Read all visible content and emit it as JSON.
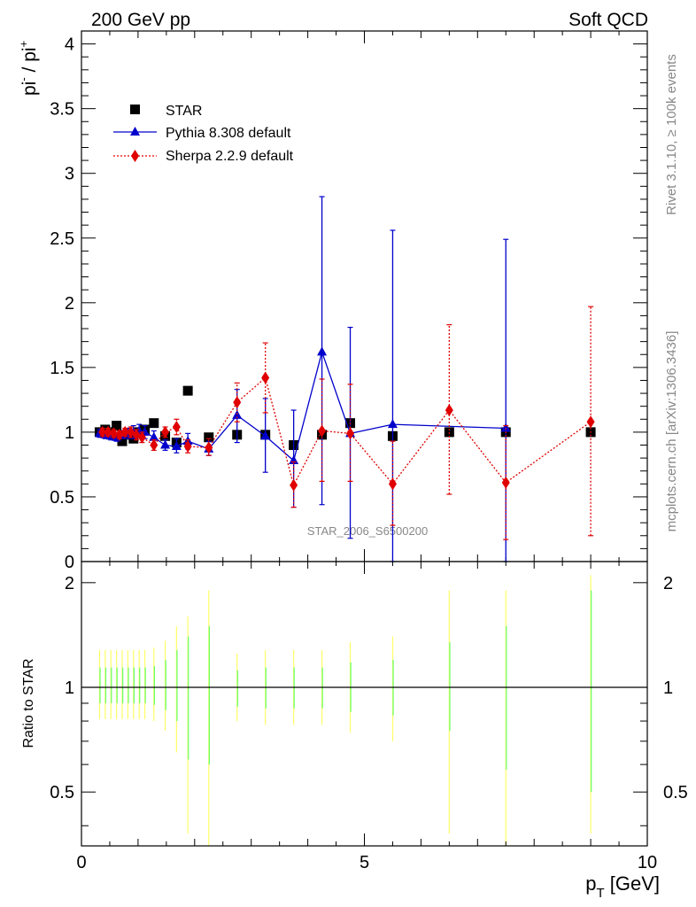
{
  "header": {
    "left": "200 GeV pp",
    "right": "Soft QCD"
  },
  "side_labels": {
    "rivet": "Rivet 3.1.10, ≥ 100k events",
    "mcplots": "mcplots.cern.ch [arXiv:1306.3436]"
  },
  "watermark": "STAR_2006_S6500200",
  "legend": {
    "star": "STAR",
    "pythia": "Pythia 8.308 default",
    "sherpa": "Sherpa 2.2.9 default"
  },
  "colors": {
    "star": "#000000",
    "pythia": "#0000cc",
    "sherpa": "#e00000",
    "band_outer": "#ffff66",
    "band_inner": "#66ff66"
  },
  "chart_data": [
    {
      "type": "scatter",
      "panel": "main",
      "ylabel_parts": {
        "base": "pi",
        "sup_minus": "-",
        "sep": " / pi",
        "sup_plus": "+"
      },
      "xlim": [
        0,
        10
      ],
      "ylim": [
        0,
        4.1
      ],
      "yticks": [
        {
          "v": 0,
          "label": "0"
        },
        {
          "v": 0.5,
          "label": "0.5"
        },
        {
          "v": 1,
          "label": "1"
        },
        {
          "v": 1.5,
          "label": "1.5"
        },
        {
          "v": 2,
          "label": "2"
        },
        {
          "v": 2.5,
          "label": "2.5"
        },
        {
          "v": 3,
          "label": "3"
        },
        {
          "v": 3.5,
          "label": "3.5"
        },
        {
          "v": 4,
          "label": "4"
        }
      ],
      "series": [
        {
          "name": "STAR",
          "marker": "square",
          "points": [
            {
              "x": 0.32,
              "y": 1.0
            },
            {
              "x": 0.42,
              "y": 1.02
            },
            {
              "x": 0.52,
              "y": 1.0
            },
            {
              "x": 0.62,
              "y": 1.05
            },
            {
              "x": 0.72,
              "y": 0.93
            },
            {
              "x": 0.82,
              "y": 0.98
            },
            {
              "x": 0.92,
              "y": 0.95
            },
            {
              "x": 1.02,
              "y": 1.0
            },
            {
              "x": 1.12,
              "y": 1.02
            },
            {
              "x": 1.28,
              "y": 1.07
            },
            {
              "x": 1.48,
              "y": 0.97
            },
            {
              "x": 1.68,
              "y": 0.92
            },
            {
              "x": 1.88,
              "y": 1.32
            },
            {
              "x": 2.25,
              "y": 0.96
            },
            {
              "x": 2.75,
              "y": 0.98
            },
            {
              "x": 3.25,
              "y": 0.98
            },
            {
              "x": 3.75,
              "y": 0.9
            },
            {
              "x": 4.25,
              "y": 0.98
            },
            {
              "x": 4.75,
              "y": 1.07
            },
            {
              "x": 5.5,
              "y": 0.97
            },
            {
              "x": 6.5,
              "y": 1.0
            },
            {
              "x": 7.5,
              "y": 1.0
            },
            {
              "x": 9.0,
              "y": 1.0
            }
          ]
        },
        {
          "name": "Pythia 8.308 default",
          "marker": "triangle",
          "line": "solid",
          "points": [
            {
              "x": 0.32,
              "y": 0.99,
              "lo": 0.96,
              "hi": 1.02
            },
            {
              "x": 0.42,
              "y": 0.98,
              "lo": 0.95,
              "hi": 1.01
            },
            {
              "x": 0.52,
              "y": 0.97,
              "lo": 0.94,
              "hi": 1.0
            },
            {
              "x": 0.62,
              "y": 0.96,
              "lo": 0.93,
              "hi": 0.99
            },
            {
              "x": 0.72,
              "y": 0.98,
              "lo": 0.95,
              "hi": 1.01
            },
            {
              "x": 0.82,
              "y": 0.99,
              "lo": 0.95,
              "hi": 1.03
            },
            {
              "x": 0.92,
              "y": 1.0,
              "lo": 0.95,
              "hi": 1.05
            },
            {
              "x": 1.02,
              "y": 1.01,
              "lo": 0.96,
              "hi": 1.06
            },
            {
              "x": 1.12,
              "y": 1.0,
              "lo": 0.95,
              "hi": 1.05
            },
            {
              "x": 1.28,
              "y": 0.96,
              "lo": 0.91,
              "hi": 1.01
            },
            {
              "x": 1.48,
              "y": 0.9,
              "lo": 0.86,
              "hi": 0.94
            },
            {
              "x": 1.68,
              "y": 0.89,
              "lo": 0.84,
              "hi": 0.95
            },
            {
              "x": 1.88,
              "y": 0.93,
              "lo": 0.87,
              "hi": 0.99
            },
            {
              "x": 2.25,
              "y": 0.87,
              "lo": 0.82,
              "hi": 0.93
            },
            {
              "x": 2.75,
              "y": 1.13,
              "lo": 0.92,
              "hi": 1.33
            },
            {
              "x": 3.25,
              "y": 0.97,
              "lo": 0.69,
              "hi": 1.26
            },
            {
              "x": 3.75,
              "y": 0.78,
              "lo": 0.42,
              "hi": 1.17
            },
            {
              "x": 4.25,
              "y": 1.62,
              "lo": 0.44,
              "hi": 2.82
            },
            {
              "x": 4.75,
              "y": 0.99,
              "lo": 0.18,
              "hi": 1.81
            },
            {
              "x": 5.5,
              "y": 1.06,
              "lo": 0.0,
              "hi": 2.56
            },
            {
              "x": 7.5,
              "y": 1.03,
              "lo": 0.0,
              "hi": 2.49
            }
          ]
        },
        {
          "name": "Sherpa 2.2.9 default",
          "marker": "diamond",
          "line": "dotted",
          "points": [
            {
              "x": 0.37,
              "y": 1.0,
              "lo": 0.97,
              "hi": 1.03
            },
            {
              "x": 0.47,
              "y": 1.0,
              "lo": 0.97,
              "hi": 1.03
            },
            {
              "x": 0.57,
              "y": 0.99,
              "lo": 0.96,
              "hi": 1.02
            },
            {
              "x": 0.67,
              "y": 0.98,
              "lo": 0.95,
              "hi": 1.01
            },
            {
              "x": 0.77,
              "y": 1.0,
              "lo": 0.97,
              "hi": 1.03
            },
            {
              "x": 0.87,
              "y": 1.0,
              "lo": 0.96,
              "hi": 1.04
            },
            {
              "x": 0.97,
              "y": 0.98,
              "lo": 0.94,
              "hi": 1.02
            },
            {
              "x": 1.07,
              "y": 0.96,
              "lo": 0.92,
              "hi": 1.0
            },
            {
              "x": 1.28,
              "y": 0.9,
              "lo": 0.86,
              "hi": 0.94
            },
            {
              "x": 1.48,
              "y": 1.0,
              "lo": 0.96,
              "hi": 1.04
            },
            {
              "x": 1.68,
              "y": 1.04,
              "lo": 0.98,
              "hi": 1.1
            },
            {
              "x": 1.88,
              "y": 0.89,
              "lo": 0.84,
              "hi": 0.94
            },
            {
              "x": 2.25,
              "y": 0.88,
              "lo": 0.82,
              "hi": 0.95
            },
            {
              "x": 2.75,
              "y": 1.23,
              "lo": 1.08,
              "hi": 1.38
            },
            {
              "x": 3.25,
              "y": 1.42,
              "lo": 1.15,
              "hi": 1.69
            },
            {
              "x": 3.75,
              "y": 0.59,
              "lo": 0.42,
              "hi": 0.77
            },
            {
              "x": 4.25,
              "y": 1.01,
              "lo": 0.62,
              "hi": 1.41
            },
            {
              "x": 4.75,
              "y": 0.99,
              "lo": 0.62,
              "hi": 1.37
            },
            {
              "x": 5.5,
              "y": 0.6,
              "lo": 0.28,
              "hi": 0.93
            },
            {
              "x": 6.5,
              "y": 1.17,
              "lo": 0.52,
              "hi": 1.83
            },
            {
              "x": 7.5,
              "y": 0.61,
              "lo": 0.17,
              "hi": 1.05
            },
            {
              "x": 9.0,
              "y": 1.08,
              "lo": 0.2,
              "hi": 1.97
            }
          ]
        }
      ]
    },
    {
      "type": "line",
      "panel": "ratio",
      "ylabel": "Ratio to STAR",
      "xlabel_base": "p",
      "xlabel_sub": "T",
      "xlabel_unit": " [GeV]",
      "xlim": [
        0,
        10
      ],
      "ylim": [
        0.35,
        2.3
      ],
      "yscale": "log",
      "xticks": [
        {
          "v": 0,
          "label": "0"
        },
        {
          "v": 5,
          "label": "5"
        },
        {
          "v": 10,
          "label": "10"
        }
      ],
      "yticks": [
        {
          "v": 0.5,
          "label": "0.5"
        },
        {
          "v": 1,
          "label": "1"
        },
        {
          "v": 2,
          "label": "2"
        }
      ],
      "reference_line": 1.0,
      "bands": [
        {
          "x": 0.32,
          "outer": [
            0.81,
            1.28
          ],
          "inner": [
            0.9,
            1.14
          ]
        },
        {
          "x": 0.42,
          "outer": [
            0.81,
            1.28
          ],
          "inner": [
            0.9,
            1.14
          ]
        },
        {
          "x": 0.52,
          "outer": [
            0.81,
            1.28
          ],
          "inner": [
            0.9,
            1.14
          ]
        },
        {
          "x": 0.62,
          "outer": [
            0.81,
            1.28
          ],
          "inner": [
            0.9,
            1.14
          ]
        },
        {
          "x": 0.72,
          "outer": [
            0.81,
            1.28
          ],
          "inner": [
            0.9,
            1.14
          ]
        },
        {
          "x": 0.82,
          "outer": [
            0.81,
            1.28
          ],
          "inner": [
            0.9,
            1.14
          ]
        },
        {
          "x": 0.92,
          "outer": [
            0.81,
            1.28
          ],
          "inner": [
            0.9,
            1.14
          ]
        },
        {
          "x": 1.02,
          "outer": [
            0.81,
            1.28
          ],
          "inner": [
            0.9,
            1.14
          ]
        },
        {
          "x": 1.12,
          "outer": [
            0.81,
            1.28
          ],
          "inner": [
            0.9,
            1.14
          ]
        },
        {
          "x": 1.28,
          "outer": [
            0.8,
            1.3
          ],
          "inner": [
            0.89,
            1.15
          ]
        },
        {
          "x": 1.48,
          "outer": [
            0.75,
            1.36
          ],
          "inner": [
            0.86,
            1.2
          ]
        },
        {
          "x": 1.68,
          "outer": [
            0.65,
            1.5
          ],
          "inner": [
            0.8,
            1.28
          ]
        },
        {
          "x": 1.88,
          "outer": [
            0.38,
            1.6
          ],
          "inner": [
            0.62,
            1.4
          ]
        },
        {
          "x": 2.25,
          "outer": [
            0.35,
            1.9
          ],
          "inner": [
            0.6,
            1.5
          ]
        },
        {
          "x": 2.75,
          "outer": [
            0.8,
            1.25
          ],
          "inner": [
            0.88,
            1.12
          ]
        },
        {
          "x": 3.25,
          "outer": [
            0.78,
            1.28
          ],
          "inner": [
            0.87,
            1.14
          ]
        },
        {
          "x": 3.75,
          "outer": [
            0.78,
            1.28
          ],
          "inner": [
            0.87,
            1.14
          ]
        },
        {
          "x": 4.25,
          "outer": [
            0.78,
            1.28
          ],
          "inner": [
            0.87,
            1.14
          ]
        },
        {
          "x": 4.75,
          "outer": [
            0.74,
            1.35
          ],
          "inner": [
            0.85,
            1.18
          ]
        },
        {
          "x": 5.5,
          "outer": [
            0.7,
            1.4
          ],
          "inner": [
            0.83,
            1.2
          ]
        },
        {
          "x": 6.5,
          "outer": [
            0.38,
            1.9
          ],
          "inner": [
            0.75,
            1.35
          ]
        },
        {
          "x": 7.5,
          "outer": [
            0.35,
            1.9
          ],
          "inner": [
            0.58,
            1.5
          ]
        },
        {
          "x": 9.0,
          "outer": [
            0.38,
            2.1
          ],
          "inner": [
            0.5,
            1.9
          ]
        }
      ]
    }
  ]
}
